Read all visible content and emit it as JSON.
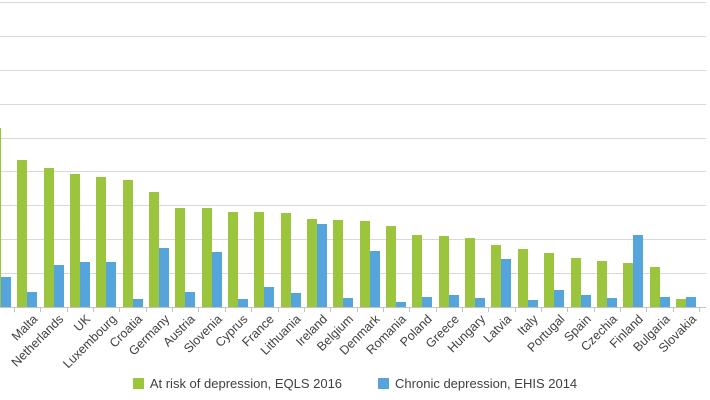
{
  "chart_data": {
    "type": "bar",
    "categories": [
      "",
      "Malta",
      "Netherlands",
      "UK",
      "Luxembourg",
      "Croatia",
      "Germany",
      "Austria",
      "Slovenia",
      "Cyprus",
      "France",
      "Lithuania",
      "Ireland",
      "Belgium",
      "Denmark",
      "Romania",
      "Poland",
      "Greece",
      "Hungary",
      "Latvia",
      "Italy",
      "Portugal",
      "Spain",
      "Czechia",
      "Finland",
      "Bulgaria",
      "Slovakia"
    ],
    "series": [
      {
        "name": "At risk of depression, EQLS 2016",
        "color": "#9bc53d",
        "values": [
          26.4,
          21.7,
          20.5,
          19.6,
          19.2,
          18.7,
          17.0,
          14.6,
          14.6,
          14.0,
          14.0,
          13.9,
          13.0,
          12.8,
          12.7,
          11.9,
          10.6,
          10.5,
          10.2,
          9.1,
          8.6,
          8.0,
          7.2,
          6.8,
          6.5,
          5.9,
          1.2
        ]
      },
      {
        "name": "Chronic depression, EHIS 2014",
        "color": "#55a4db",
        "values": [
          4.4,
          2.2,
          6.2,
          6.6,
          6.6,
          1.2,
          8.7,
          2.2,
          8.1,
          1.2,
          3.0,
          2.1,
          12.2,
          1.3,
          8.3,
          0.7,
          1.5,
          1.8,
          1.3,
          7.1,
          1.0,
          2.5,
          1.8,
          1.3,
          10.6,
          1.5,
          1.5
        ]
      }
    ],
    "title": "",
    "xlabel": "",
    "ylabel": "",
    "ylim": [
      0,
      45.3
    ],
    "gridline_step": 5,
    "grid": "horizontal",
    "legend_position": "bottom",
    "notes": "left edge of plot and y-axis tick labels are cropped out of view; first category bar pair partially clipped"
  }
}
